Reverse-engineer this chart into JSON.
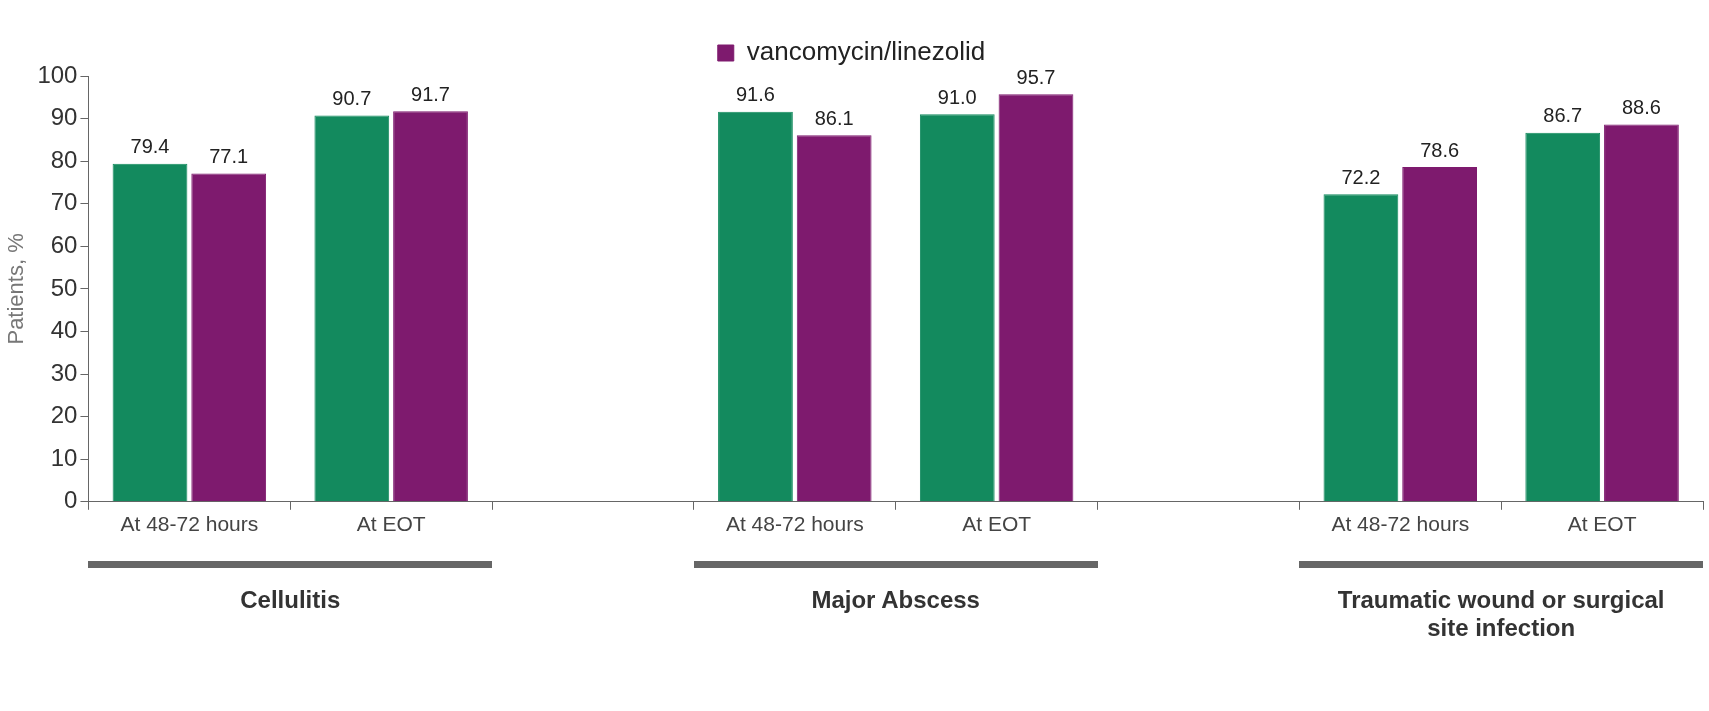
{
  "chart_data": {
    "type": "bar",
    "ylabel": "Patients, %",
    "categories": [
      "At 48-72 hours",
      "At EOT",
      null,
      "At 48-72 hours",
      "At EOT",
      null,
      "At 48-72 hours",
      "At EOT"
    ],
    "series": [
      {
        "color": "#138a5e",
        "values": [
          79.4,
          90.7,
          null,
          91.6,
          91.0,
          null,
          72.2,
          86.7
        ],
        "value_labels": [
          "79.4",
          "90.7",
          null,
          "91.6",
          "91.0",
          null,
          "72.2",
          "86.7"
        ]
      },
      {
        "name": "vancomycin/linezolid",
        "color": "#7e1a6e",
        "values": [
          77.1,
          91.7,
          null,
          86.1,
          95.7,
          null,
          78.6,
          88.6
        ],
        "value_labels": [
          "77.1",
          "91.7",
          null,
          "86.1",
          "95.7",
          null,
          "78.6",
          "88.6"
        ]
      }
    ],
    "ylim": [
      0,
      100
    ],
    "yticks": [
      0,
      10,
      20,
      30,
      40,
      50,
      60,
      70,
      80,
      90,
      100
    ],
    "grid": false,
    "legend": "top",
    "annotations": [
      "Cellulitis",
      "Major Abscess",
      "Traumatic wound or surgical site infection"
    ]
  }
}
